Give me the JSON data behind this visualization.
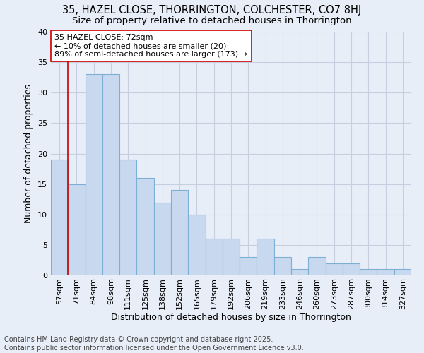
{
  "title_line1": "35, HAZEL CLOSE, THORRINGTON, COLCHESTER, CO7 8HJ",
  "title_line2": "Size of property relative to detached houses in Thorrington",
  "xlabel": "Distribution of detached houses by size in Thorrington",
  "ylabel": "Number of detached properties",
  "categories": [
    "57sqm",
    "71sqm",
    "84sqm",
    "98sqm",
    "111sqm",
    "125sqm",
    "138sqm",
    "152sqm",
    "165sqm",
    "179sqm",
    "192sqm",
    "206sqm",
    "219sqm",
    "233sqm",
    "246sqm",
    "260sqm",
    "273sqm",
    "287sqm",
    "300sqm",
    "314sqm",
    "327sqm"
  ],
  "values": [
    19,
    15,
    33,
    33,
    19,
    16,
    12,
    14,
    10,
    6,
    6,
    3,
    6,
    3,
    1,
    3,
    2,
    2,
    1,
    1,
    1
  ],
  "bar_color": "#c8d9ef",
  "bar_edge_color": "#7bafd4",
  "grid_color": "#c5cfe0",
  "background_color": "#e8eef8",
  "vline_x_index": 1,
  "vline_color": "#cc0000",
  "annotation_text": "35 HAZEL CLOSE: 72sqm\n← 10% of detached houses are smaller (20)\n89% of semi-detached houses are larger (173) →",
  "annotation_box_facecolor": "#ffffff",
  "annotation_box_edgecolor": "#cc0000",
  "ylim": [
    0,
    40
  ],
  "yticks": [
    0,
    5,
    10,
    15,
    20,
    25,
    30,
    35,
    40
  ],
  "footer_line1": "Contains HM Land Registry data © Crown copyright and database right 2025.",
  "footer_line2": "Contains public sector information licensed under the Open Government Licence v3.0.",
  "title_fontsize": 10.5,
  "subtitle_fontsize": 9.5,
  "axis_label_fontsize": 9,
  "tick_fontsize": 8,
  "annotation_fontsize": 8,
  "footer_fontsize": 7
}
